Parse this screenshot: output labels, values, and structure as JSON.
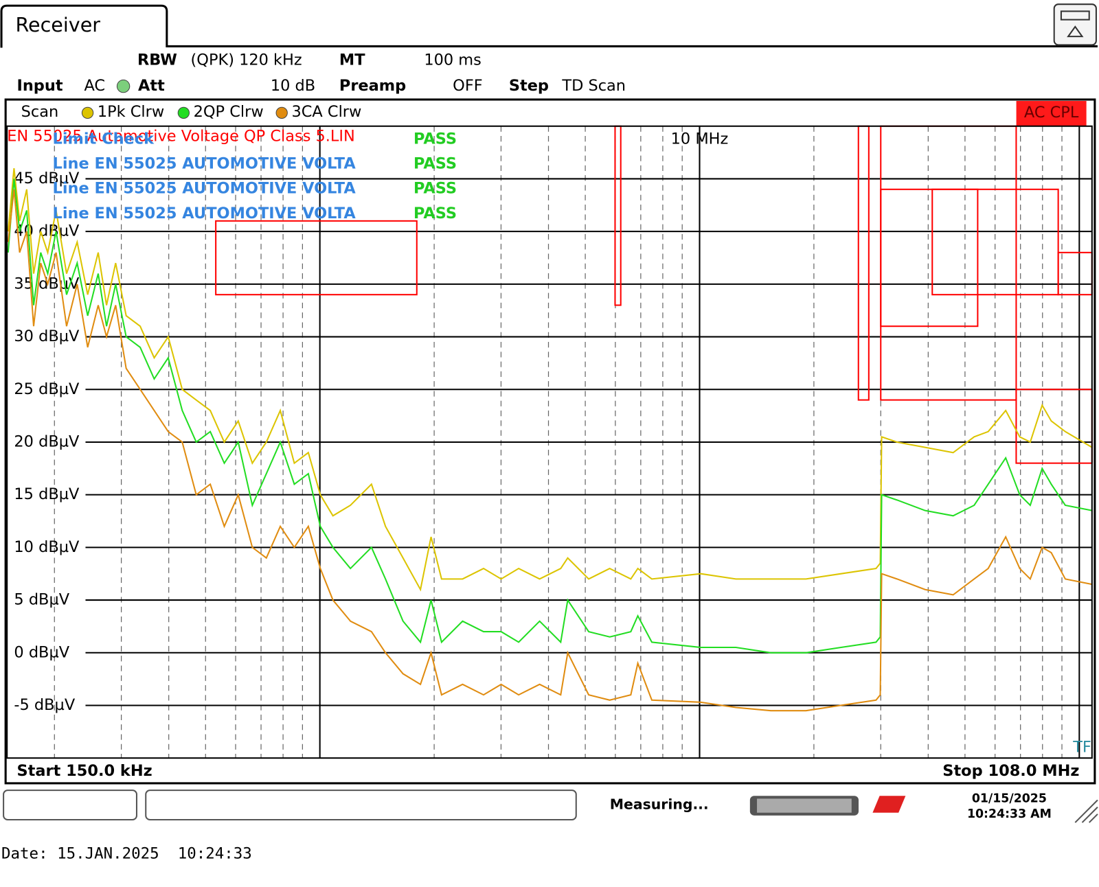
{
  "header": {
    "tab": "Receiver",
    "settings": [
      {
        "label": "RBW",
        "value": "(QPK) 120 kHz"
      },
      {
        "label": "MT",
        "value": "100 ms"
      },
      {
        "label": "Input",
        "value": "AC"
      },
      {
        "label": "Att",
        "value": "10 dB"
      },
      {
        "label": "Preamp",
        "value": "OFF"
      },
      {
        "label": "Step",
        "value": "TD Scan"
      }
    ]
  },
  "chart_data": {
    "type": "line",
    "log_x": true,
    "scan_label": "Scan",
    "coupling": "AC CPL",
    "marker": "TF",
    "start": "Start 150.0 kHz",
    "stop": "Stop 108.0 MHz",
    "limit_label": "EN 55025 Automotive Voltage QP Class 5.LIN",
    "limit_check": {
      "title": "Limit Check",
      "result": "PASS",
      "lines": [
        {
          "name": "Line EN 55025 AUTOMOTIVE VOLTA",
          "result": "PASS"
        },
        {
          "name": "Line EN 55025 AUTOMOTIVE VOLTA",
          "result": "PASS"
        },
        {
          "name": "Line EN 55025 AUTOMOTIVE VOLTA",
          "result": "PASS"
        }
      ]
    },
    "xlim": [
      150000,
      108000000
    ],
    "ylim": [
      -10,
      50
    ],
    "xticks": [
      {
        "value": 10000000,
        "label": "10 MHz"
      }
    ],
    "xgrid": [
      200000,
      300000,
      400000,
      500000,
      600000,
      700000,
      800000,
      900000,
      1000000,
      2000000,
      3000000,
      4000000,
      5000000,
      6000000,
      7000000,
      8000000,
      9000000,
      10000000,
      20000000,
      30000000,
      40000000,
      50000000,
      60000000,
      70000000,
      80000000,
      90000000,
      100000000
    ],
    "yticks": [
      {
        "value": 45,
        "label": "45 dBµV"
      },
      {
        "value": 40,
        "label": "40 dBµV"
      },
      {
        "value": 35,
        "label": "35 dBµV"
      },
      {
        "value": 30,
        "label": "30 dBµV"
      },
      {
        "value": 25,
        "label": "25 dBµV"
      },
      {
        "value": 20,
        "label": "20 dBµV"
      },
      {
        "value": 15,
        "label": "15 dBµV"
      },
      {
        "value": 10,
        "label": "10 dBµV"
      },
      {
        "value": 5,
        "label": "5 dBµV"
      },
      {
        "value": 0,
        "label": "0 dBµV"
      },
      {
        "value": -5,
        "label": "-5 dBµV"
      }
    ],
    "grid": true,
    "limit_color": "#ff0000",
    "limit_boxes": [
      {
        "x": [
          532000,
          1800000
        ],
        "y": [
          41,
          34
        ]
      },
      {
        "x": [
          5990000,
          6200000
        ],
        "y": [
          50,
          33
        ]
      },
      {
        "x": [
          26200000,
          27900000
        ],
        "y": [
          50,
          24
        ]
      },
      {
        "x": [
          30000000,
          54000000
        ],
        "y": [
          44,
          31
        ]
      },
      {
        "x": [
          30000000,
          68200000
        ],
        "y": [
          50,
          24
        ]
      },
      {
        "x": [
          41000000,
          88000000
        ],
        "y": [
          44,
          34
        ]
      },
      {
        "x": [
          68200000,
          108000000
        ],
        "y": [
          25,
          18
        ]
      },
      {
        "x": [
          88000000,
          108000000
        ],
        "y": [
          38,
          34
        ]
      }
    ],
    "x": [
      151000,
      156500,
      161900,
      169000,
      176300,
      184000,
      192000,
      202000,
      215300,
      229500,
      244600,
      260700,
      274300,
      289900,
      309000,
      336400,
      366200,
      398700,
      434000,
      472600,
      514400,
      560200,
      609700,
      663800,
      722700,
      786700,
      856600,
      932400,
      1002500,
      1082400,
      1203600,
      1367200,
      1488600,
      1655400,
      1840800,
      1962400,
      2092000,
      2375900,
      2698400,
      3001400,
      3337800,
      3791400,
      4308000,
      4495200,
      5105000,
      5799000,
      6588600,
      6875100,
      7485300,
      10075500,
      12460500,
      15414000,
      19059000,
      23572500,
      29160000,
      29913000,
      30168000,
      33123000,
      39262500,
      46525500,
      52864500,
      57553500,
      64014000,
      69690000,
      74280000,
      79830000,
      84360000,
      91845000,
      108000000
    ],
    "series": [
      {
        "name": "1Pk Clrw",
        "color": "#dcc400",
        "values": [
          40,
          46,
          41,
          44,
          36,
          40,
          38,
          42,
          36,
          39,
          34,
          38,
          33,
          37,
          32,
          31,
          28,
          30,
          25,
          24,
          23,
          20,
          22,
          18,
          20,
          23,
          18,
          19,
          15,
          13,
          14,
          16,
          12,
          9,
          6,
          11,
          7,
          7,
          8,
          7,
          8,
          7,
          8,
          9,
          7,
          8,
          7,
          8,
          7,
          7.5,
          7,
          7,
          7,
          7.5,
          8,
          8.5,
          20.5,
          20,
          19.5,
          19,
          20.5,
          21,
          23,
          20.5,
          20,
          23.5,
          22,
          21,
          19.5
        ]
      },
      {
        "name": "2QP Clrw",
        "color": "#22dd22",
        "values": [
          38,
          45,
          40,
          42,
          33,
          38,
          36,
          40,
          34,
          37,
          32,
          36,
          31,
          35,
          30,
          29,
          26,
          28,
          23,
          20,
          21,
          18,
          20,
          14,
          17,
          20,
          16,
          17,
          12,
          10,
          8,
          10,
          7,
          3,
          1,
          5,
          1,
          3,
          2,
          2,
          1,
          3,
          1,
          5,
          2,
          1.5,
          2,
          3.5,
          1,
          0.5,
          0.5,
          0,
          0,
          0.5,
          1,
          1.5,
          15,
          14.5,
          13.5,
          13,
          14,
          16,
          18.5,
          15,
          14,
          17.5,
          16,
          14,
          13.5
        ]
      },
      {
        "name": "3CA Clrw",
        "color": "#e08c10",
        "values": [
          39,
          44,
          38,
          40,
          31,
          37,
          35,
          38,
          31,
          35,
          29,
          33,
          30,
          33,
          27,
          25,
          23,
          21,
          20,
          15,
          16,
          12,
          15,
          10,
          9,
          12,
          10,
          12,
          8,
          5,
          3,
          2,
          0,
          -2,
          -3,
          0,
          -4,
          -3,
          -4,
          -3,
          -4,
          -3,
          -4,
          0,
          -4,
          -4.5,
          -4,
          -1,
          -4.5,
          -4.7,
          -5.2,
          -5.5,
          -5.5,
          -5,
          -4.5,
          -4,
          7.5,
          7,
          6,
          5.5,
          7,
          8,
          11,
          8,
          7,
          10,
          9.5,
          7,
          6.5
        ]
      }
    ]
  },
  "status": {
    "state": "Measuring...",
    "date": "01/15/2025",
    "time": "10:24:33 AM"
  },
  "footer": "Date: 15.JAN.2025  10:24:33"
}
